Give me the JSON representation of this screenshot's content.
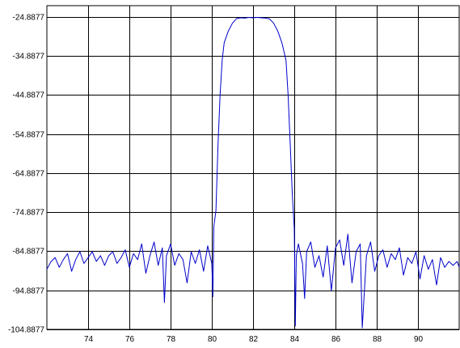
{
  "chart_data": {
    "type": "line",
    "title": "",
    "xlabel": "",
    "ylabel": "",
    "xlim": [
      72.0,
      92.0
    ],
    "ylim": [
      -104.8877,
      -22.0
    ],
    "x_ticks": [
      74,
      76,
      78,
      80,
      82,
      84,
      86,
      88,
      90
    ],
    "x_tick_labels": [
      "74",
      "76",
      "78",
      "80",
      "82",
      "84",
      "86",
      "88",
      "90"
    ],
    "y_ticks": [
      -24.8877,
      -34.8877,
      -44.8877,
      -54.8877,
      -64.8877,
      -74.8877,
      -84.8877,
      -94.8877,
      -104.8877
    ],
    "y_tick_labels": [
      "-24.8877",
      "-34.8877",
      "-44.8877",
      "-54.8877",
      "-64.8877",
      "-74.8877",
      "-84.8877",
      "-94.8877",
      "-104.8877"
    ],
    "grid": true,
    "legend": "none",
    "series": [
      {
        "color": "#0000cc",
        "points": [
          [
            72.0,
            -89.5
          ],
          [
            72.2,
            -87.5
          ],
          [
            72.4,
            -86.5
          ],
          [
            72.6,
            -89.0
          ],
          [
            72.8,
            -87.0
          ],
          [
            73.0,
            -85.5
          ],
          [
            73.2,
            -90.0
          ],
          [
            73.4,
            -87.0
          ],
          [
            73.6,
            -85.0
          ],
          [
            73.8,
            -88.0
          ],
          [
            74.0,
            -86.5
          ],
          [
            74.2,
            -85.0
          ],
          [
            74.4,
            -87.5
          ],
          [
            74.6,
            -86.0
          ],
          [
            74.8,
            -88.5
          ],
          [
            75.0,
            -86.0
          ],
          [
            75.2,
            -85.0
          ],
          [
            75.4,
            -88.0
          ],
          [
            75.6,
            -86.5
          ],
          [
            75.8,
            -84.5
          ],
          [
            76.0,
            -89.0
          ],
          [
            76.2,
            -85.5
          ],
          [
            76.4,
            -87.0
          ],
          [
            76.6,
            -83.0
          ],
          [
            76.8,
            -90.5
          ],
          [
            77.0,
            -86.0
          ],
          [
            77.2,
            -82.5
          ],
          [
            77.4,
            -88.5
          ],
          [
            77.6,
            -84.0
          ],
          [
            77.7,
            -98.0
          ],
          [
            77.8,
            -86.0
          ],
          [
            78.0,
            -83.0
          ],
          [
            78.2,
            -88.5
          ],
          [
            78.4,
            -85.5
          ],
          [
            78.6,
            -87.0
          ],
          [
            78.8,
            -93.0
          ],
          [
            79.0,
            -85.0
          ],
          [
            79.2,
            -88.0
          ],
          [
            79.4,
            -84.5
          ],
          [
            79.6,
            -90.0
          ],
          [
            79.8,
            -83.5
          ],
          [
            80.0,
            -88.0
          ],
          [
            80.05,
            -96.5
          ],
          [
            80.1,
            -78.5
          ],
          [
            80.2,
            -74.5
          ],
          [
            80.3,
            -58.0
          ],
          [
            80.4,
            -45.0
          ],
          [
            80.5,
            -36.0
          ],
          [
            80.6,
            -31.5
          ],
          [
            80.8,
            -28.5
          ],
          [
            81.0,
            -26.5
          ],
          [
            81.2,
            -25.3
          ],
          [
            81.4,
            -25.1
          ],
          [
            81.6,
            -25.2
          ],
          [
            81.8,
            -25.0
          ],
          [
            82.0,
            -25.1
          ],
          [
            82.2,
            -25.0
          ],
          [
            82.4,
            -25.1
          ],
          [
            82.6,
            -25.2
          ],
          [
            82.8,
            -25.4
          ],
          [
            83.0,
            -26.5
          ],
          [
            83.2,
            -28.5
          ],
          [
            83.4,
            -31.5
          ],
          [
            83.6,
            -36.0
          ],
          [
            83.7,
            -45.0
          ],
          [
            83.8,
            -57.0
          ],
          [
            83.9,
            -70.0
          ],
          [
            84.0,
            -79.0
          ],
          [
            84.05,
            -104.0
          ],
          [
            84.1,
            -86.0
          ],
          [
            84.2,
            -83.0
          ],
          [
            84.4,
            -88.0
          ],
          [
            84.5,
            -97.0
          ],
          [
            84.6,
            -85.0
          ],
          [
            84.8,
            -82.5
          ],
          [
            85.0,
            -89.0
          ],
          [
            85.2,
            -86.0
          ],
          [
            85.4,
            -91.5
          ],
          [
            85.6,
            -83.5
          ],
          [
            85.8,
            -95.0
          ],
          [
            86.0,
            -84.0
          ],
          [
            86.2,
            -82.0
          ],
          [
            86.4,
            -88.5
          ],
          [
            86.6,
            -80.5
          ],
          [
            86.8,
            -93.0
          ],
          [
            87.0,
            -85.0
          ],
          [
            87.2,
            -83.0
          ],
          [
            87.3,
            -104.5
          ],
          [
            87.5,
            -86.0
          ],
          [
            87.7,
            -82.5
          ],
          [
            87.9,
            -90.0
          ],
          [
            88.1,
            -86.0
          ],
          [
            88.3,
            -84.5
          ],
          [
            88.5,
            -89.0
          ],
          [
            88.7,
            -85.5
          ],
          [
            88.9,
            -87.0
          ],
          [
            89.1,
            -84.0
          ],
          [
            89.3,
            -91.0
          ],
          [
            89.5,
            -86.5
          ],
          [
            89.7,
            -88.0
          ],
          [
            89.9,
            -85.0
          ],
          [
            90.1,
            -92.0
          ],
          [
            90.3,
            -86.0
          ],
          [
            90.5,
            -89.5
          ],
          [
            90.7,
            -87.0
          ],
          [
            90.9,
            -93.5
          ],
          [
            91.1,
            -86.5
          ],
          [
            91.3,
            -89.0
          ],
          [
            91.5,
            -87.5
          ],
          [
            91.7,
            -88.5
          ],
          [
            91.9,
            -87.5
          ],
          [
            92.0,
            -89.0
          ]
        ]
      }
    ]
  }
}
